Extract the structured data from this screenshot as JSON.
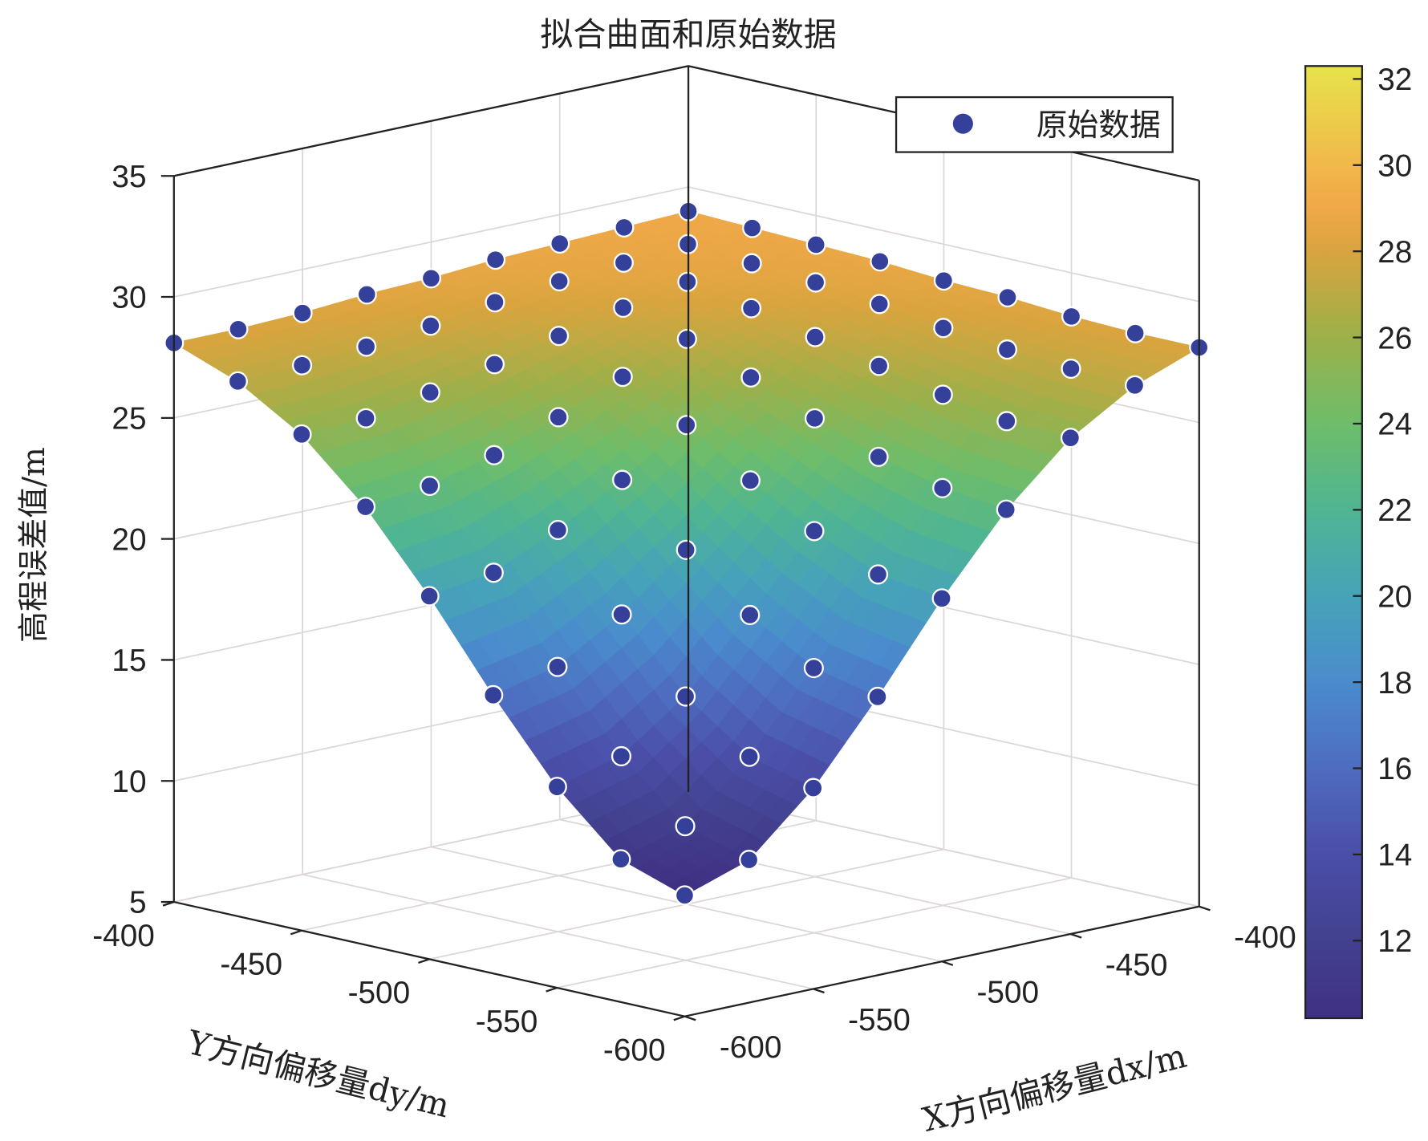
{
  "chart_data": {
    "type": "surface3d+scatter3d",
    "title": "拟合曲面和原始数据",
    "xlabel": "X方向偏移量dx/m",
    "ylabel": "Y方向偏移量dy/m",
    "zlabel": "高程误差值/m",
    "xlim": [
      -600,
      -400
    ],
    "ylim": [
      -600,
      -400
    ],
    "zlim": [
      5,
      35
    ],
    "x_ticks": [
      "-600",
      "-550",
      "-500",
      "-450",
      "-400"
    ],
    "y_ticks": [
      "-400",
      "-450",
      "-500",
      "-550",
      "-600"
    ],
    "z_ticks": [
      "5",
      "10",
      "15",
      "20",
      "25",
      "30",
      "35"
    ],
    "grid": true,
    "legend": {
      "placement": "top-right",
      "entries": [
        "原始数据"
      ]
    },
    "marker_color": "#34409a",
    "grid_x": [
      -600,
      -575,
      -550,
      -525,
      -500,
      -475,
      -450,
      -425,
      -400
    ],
    "grid_y": [
      -600,
      -575,
      -550,
      -525,
      -500,
      -475,
      -450,
      -425,
      -400
    ],
    "z_grid": [
      [
        10.0,
        10.9,
        13.3,
        16.5,
        20.0,
        23.1,
        25.5,
        27.1,
        28.1
      ],
      [
        10.9,
        11.7,
        14.0,
        17.1,
        20.4,
        23.4,
        25.6,
        27.2,
        28.1
      ],
      [
        13.3,
        14.0,
        15.9,
        18.7,
        21.6,
        24.1,
        26.1,
        27.4,
        28.2
      ],
      [
        16.5,
        17.1,
        18.7,
        20.8,
        23.1,
        25.1,
        26.7,
        27.7,
        28.4
      ],
      [
        20.0,
        20.4,
        21.6,
        23.1,
        24.8,
        26.2,
        27.3,
        28.1,
        28.5
      ],
      [
        23.1,
        23.4,
        24.1,
        25.1,
        26.2,
        27.2,
        27.9,
        28.4,
        28.7
      ],
      [
        25.5,
        25.6,
        26.1,
        26.7,
        27.3,
        27.9,
        28.4,
        28.6,
        28.8
      ],
      [
        27.1,
        27.2,
        27.4,
        27.7,
        28.1,
        28.4,
        28.6,
        28.8,
        28.9
      ],
      [
        28.1,
        28.1,
        28.2,
        28.4,
        28.5,
        28.7,
        28.8,
        28.9,
        29.0
      ]
    ],
    "colorbar": {
      "range": [
        10.2,
        32.3
      ],
      "ticks": [
        "12",
        "14",
        "16",
        "18",
        "20",
        "22",
        "24",
        "26",
        "28",
        "30",
        "32"
      ],
      "colormap": [
        [
          10.2,
          "#403083"
        ],
        [
          12,
          "#42418f"
        ],
        [
          14,
          "#4b4ea8"
        ],
        [
          16,
          "#4e6cc0"
        ],
        [
          18,
          "#4a8ccd"
        ],
        [
          20,
          "#46a3b8"
        ],
        [
          22,
          "#4fb592"
        ],
        [
          24,
          "#6ebd6a"
        ],
        [
          26,
          "#9cb04a"
        ],
        [
          28,
          "#d9a43e"
        ],
        [
          29,
          "#f0a848"
        ],
        [
          30,
          "#f1b84a"
        ],
        [
          32.3,
          "#e6e34a"
        ]
      ]
    }
  }
}
